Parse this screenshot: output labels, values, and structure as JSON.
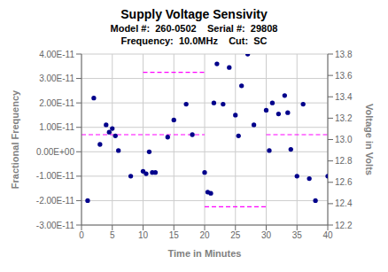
{
  "chart_data": {
    "type": "scatter",
    "title": "Supply Voltage Sensivity",
    "subtitle": [
      "Model #:  260-0502    Serial #:  29808",
      "Frequency:  10.0MHz    Cut:  SC"
    ],
    "xlabel": "Time in Minutes",
    "ylabel": "Fractional Frequency",
    "y2label": "Voltage in Volts",
    "xlim": [
      0,
      40
    ],
    "ylim": [
      -3e-11,
      4e-11
    ],
    "y2lim": [
      12.2,
      13.8
    ],
    "xticks": [
      0,
      5,
      10,
      15,
      20,
      25,
      30,
      35,
      40
    ],
    "yticks": [
      {
        "value": -3e-11,
        "label": "-3.00E-11"
      },
      {
        "value": -2e-11,
        "label": "-2.00E-11"
      },
      {
        "value": -1e-11,
        "label": "-1.00E-11"
      },
      {
        "value": 0,
        "label": "0.00E+00"
      },
      {
        "value": 1e-11,
        "label": "1.00E-11"
      },
      {
        "value": 2e-11,
        "label": "2.00E-11"
      },
      {
        "value": 3e-11,
        "label": "3.00E-11"
      },
      {
        "value": 4e-11,
        "label": "4.00E-11"
      }
    ],
    "y2ticks": [
      12.2,
      12.4,
      12.6,
      12.8,
      {
        "value": 13,
        "label": "13.0"
      },
      13.2,
      13.4,
      13.6,
      13.8
    ],
    "grid": true,
    "series": [
      {
        "type": "scatter",
        "color": "#00008B",
        "x": [
          1,
          2,
          3,
          4,
          4.5,
          5,
          5.5,
          6,
          8,
          10,
          10.5,
          11,
          11.5,
          12,
          14,
          15,
          17,
          18,
          20,
          20.5,
          21,
          21.5,
          22,
          23,
          24,
          25,
          25.5,
          26,
          27,
          28,
          30,
          30.5,
          31,
          32,
          33,
          33.5,
          34,
          35,
          36,
          37,
          38,
          40
        ],
        "values": [
          -2e-11,
          2.2e-11,
          3e-12,
          1.1e-11,
          8e-12,
          9.5e-12,
          6.5e-12,
          5e-13,
          -1e-11,
          -8e-12,
          -9e-12,
          0.0,
          -8.5e-12,
          -8.5e-12,
          6e-12,
          1.3e-11,
          1.95e-11,
          7e-12,
          -8.5e-12,
          -1.65e-11,
          -1.7e-11,
          2e-11,
          3.6e-11,
          1.95e-11,
          3.45e-11,
          1.5e-11,
          6.5e-12,
          2.7e-11,
          4e-11,
          1.1e-11,
          1.7e-11,
          5e-13,
          2e-11,
          1.55e-11,
          2.3e-11,
          1.6e-11,
          1e-12,
          -1e-11,
          1.95e-11,
          -1.1e-11,
          -2e-11,
          -1e-11
        ]
      },
      {
        "type": "line",
        "line_style": "dashed",
        "color": "magenta",
        "x": [
          10,
          20
        ],
        "values": [
          3.25e-11,
          3.25e-11
        ]
      },
      {
        "type": "line",
        "line_style": "dashed",
        "color": "magenta",
        "x": [
          0,
          20
        ],
        "values": [
          7e-12,
          7e-12
        ]
      },
      {
        "type": "line",
        "line_style": "dashed",
        "color": "magenta",
        "x": [
          20,
          30
        ],
        "values": [
          -2.25e-11,
          -2.25e-11
        ]
      },
      {
        "type": "line",
        "line_style": "dashed",
        "color": "magenta",
        "x": [
          30,
          40
        ],
        "values": [
          7e-12,
          7e-12
        ]
      }
    ]
  }
}
